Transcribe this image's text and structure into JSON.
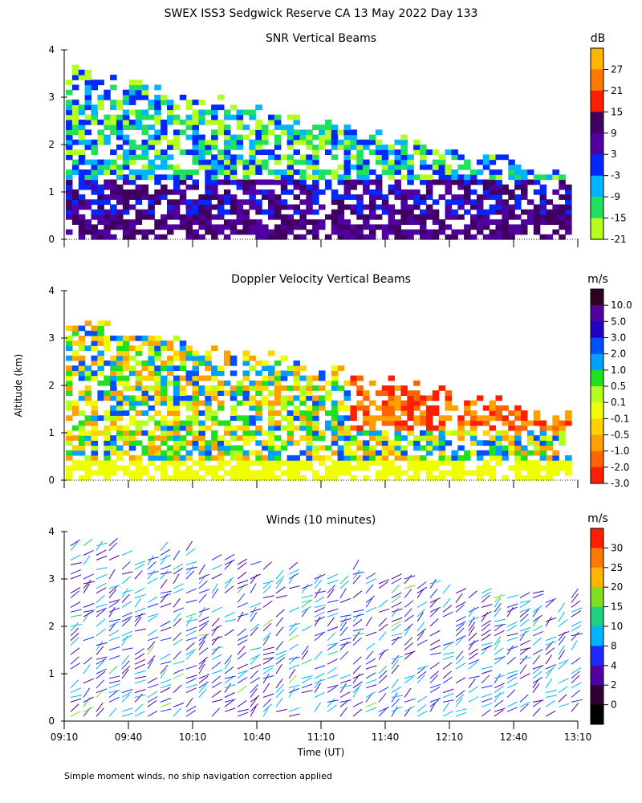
{
  "page": {
    "title": "SWEX ISS3 Sedgwick Reserve CA  13 May 2022 Day 133",
    "y_axis_label": "Altitude (km)",
    "footnote": "Simple moment winds, no ship navigation correction applied"
  },
  "chart_data": [
    {
      "id": "snr",
      "type": "heatmap",
      "title": "SNR Vertical Beams",
      "colorbar_unit": "dB",
      "ylim": [
        0,
        4
      ],
      "y_ticks": [
        "0",
        "1",
        "2",
        "3",
        "4"
      ],
      "colorbar_labels": [
        "27",
        "21",
        "15",
        "9",
        "3",
        "-3",
        "-9",
        "-15",
        "-21"
      ],
      "colorbar_colors": [
        "#ffb400",
        "#ff7800",
        "#ff1e00",
        "#400060",
        "#5000a0",
        "#0028ff",
        "#00b4ff",
        "#20e060",
        "#b4ff20"
      ]
    },
    {
      "id": "doppler",
      "type": "heatmap",
      "title": "Doppler Velocity Vertical Beams",
      "colorbar_unit": "m/s",
      "ylim": [
        0,
        4
      ],
      "y_ticks": [
        "0",
        "1",
        "2",
        "3",
        "4"
      ],
      "colorbar_labels": [
        "10.0",
        "5.0",
        "3.0",
        "2.0",
        "1.0",
        "0.5",
        "0.1",
        "-0.1",
        "-0.5",
        "-1.0",
        "-2.0",
        "-3.0"
      ],
      "colorbar_colors": [
        "#300020",
        "#5000a0",
        "#1e00c8",
        "#0050ff",
        "#00a0ff",
        "#20e020",
        "#b4ff20",
        "#f0ff00",
        "#ffd200",
        "#ffa000",
        "#ff6400",
        "#ff1e00"
      ]
    },
    {
      "id": "winds",
      "type": "scatter",
      "title": "Winds (10 minutes)",
      "colorbar_unit": "m/s",
      "ylim": [
        0,
        4
      ],
      "y_ticks": [
        "0",
        "1",
        "2",
        "3",
        "4"
      ],
      "colorbar_labels": [
        "30",
        "25",
        "20",
        "15",
        "10",
        "8",
        "4",
        "2",
        "0"
      ],
      "colorbar_colors": [
        "#ff1e00",
        "#ff7800",
        "#ffb400",
        "#80e020",
        "#20d080",
        "#00b4ff",
        "#1e28ff",
        "#5000a0",
        "#300030",
        "#000000"
      ],
      "x_ticks": [
        "09:10",
        "09:40",
        "10:10",
        "10:40",
        "11:10",
        "11:40",
        "12:10",
        "12:40",
        "13:10"
      ],
      "xlabel": "Time (UT)"
    }
  ]
}
